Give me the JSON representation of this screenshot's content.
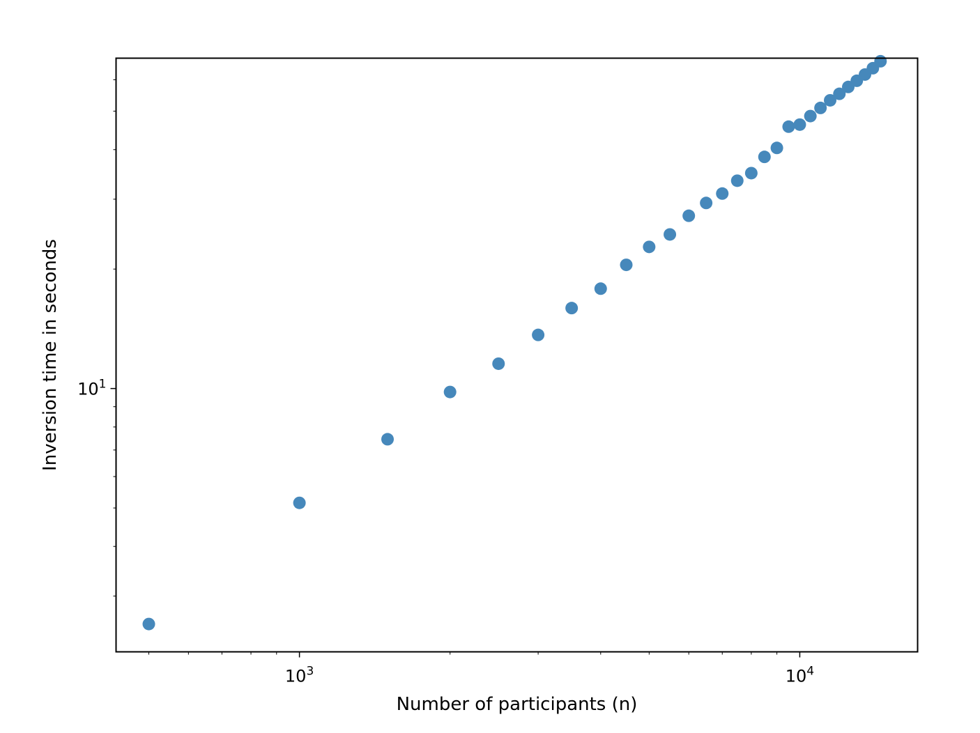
{
  "chart_data": {
    "type": "scatter",
    "title": "",
    "xlabel": "Number of participants (n)",
    "ylabel": "Inversion time in seconds",
    "xscale": "log",
    "yscale": "log",
    "xlim": [
      430,
      17200
    ],
    "ylim": [
      2.17,
      68
    ],
    "grid": false,
    "marker_color": "#4688bb",
    "x_ticks": [
      {
        "value": 1000,
        "base": "10",
        "exp": "3"
      },
      {
        "value": 10000,
        "base": "10",
        "exp": "4"
      }
    ],
    "y_ticks": [
      {
        "value": 10,
        "base": "10",
        "exp": "1"
      }
    ],
    "series": [
      {
        "name": "",
        "x": [
          500,
          1000,
          1500,
          2000,
          2500,
          3000,
          3500,
          4000,
          4500,
          5000,
          5500,
          6000,
          6500,
          7000,
          7500,
          8000,
          8500,
          9000,
          9500,
          10000,
          10500,
          11000,
          11500,
          12000,
          12500,
          13000,
          13500,
          14000,
          14500
        ],
        "y": [
          2.55,
          5.15,
          7.45,
          9.8,
          11.55,
          13.65,
          15.95,
          17.85,
          20.5,
          22.75,
          24.45,
          27.25,
          29.35,
          31.0,
          33.4,
          34.9,
          38.35,
          40.4,
          45.7,
          46.25,
          48.6,
          50.95,
          53.25,
          55.3,
          57.55,
          59.65,
          61.85,
          64.15,
          66.8
        ]
      }
    ]
  }
}
